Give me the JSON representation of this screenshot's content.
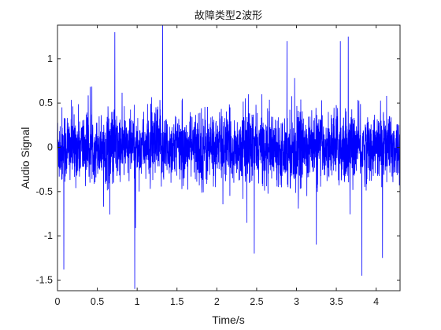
{
  "chart_data": {
    "type": "line",
    "title": "故障类型2波形",
    "xlabel": "Time/s",
    "ylabel": "Audio Signal",
    "xlim": [
      0,
      4.3
    ],
    "ylim": [
      -1.62,
      1.38
    ],
    "xticks": [
      0,
      0.5,
      1,
      1.5,
      2,
      2.5,
      3,
      3.5,
      4
    ],
    "xtick_labels": [
      "0",
      "0.5",
      "1",
      "1.5",
      "2",
      "2.5",
      "3",
      "3.5",
      "4"
    ],
    "yticks": [
      1,
      0.5,
      0,
      -0.5,
      -1,
      -1.5
    ],
    "ytick_labels": [
      "1",
      "0.5",
      "0",
      "-0.5",
      "-1",
      "-1.5"
    ],
    "grid": false,
    "series_color": "#0000ff",
    "series": [
      {
        "signal": "dense noise-like audio waveform, approximately zero-mean",
        "x_range": [
          0,
          4.3
        ],
        "typical_amplitude": 0.55,
        "notable_peaks": [
          {
            "x": 1.32,
            "y": 1.38
          },
          {
            "x": 0.72,
            "y": 1.3
          },
          {
            "x": 3.65,
            "y": 1.25
          },
          {
            "x": 2.88,
            "y": 1.2
          },
          {
            "x": 3.55,
            "y": 1.2
          }
        ],
        "notable_troughs": [
          {
            "x": 0.97,
            "y": -1.6
          },
          {
            "x": 0.08,
            "y": -1.38
          },
          {
            "x": 3.82,
            "y": -1.45
          },
          {
            "x": 2.47,
            "y": -1.2
          },
          {
            "x": 4.08,
            "y": -1.25
          },
          {
            "x": 3.25,
            "y": -1.1
          }
        ]
      }
    ]
  }
}
